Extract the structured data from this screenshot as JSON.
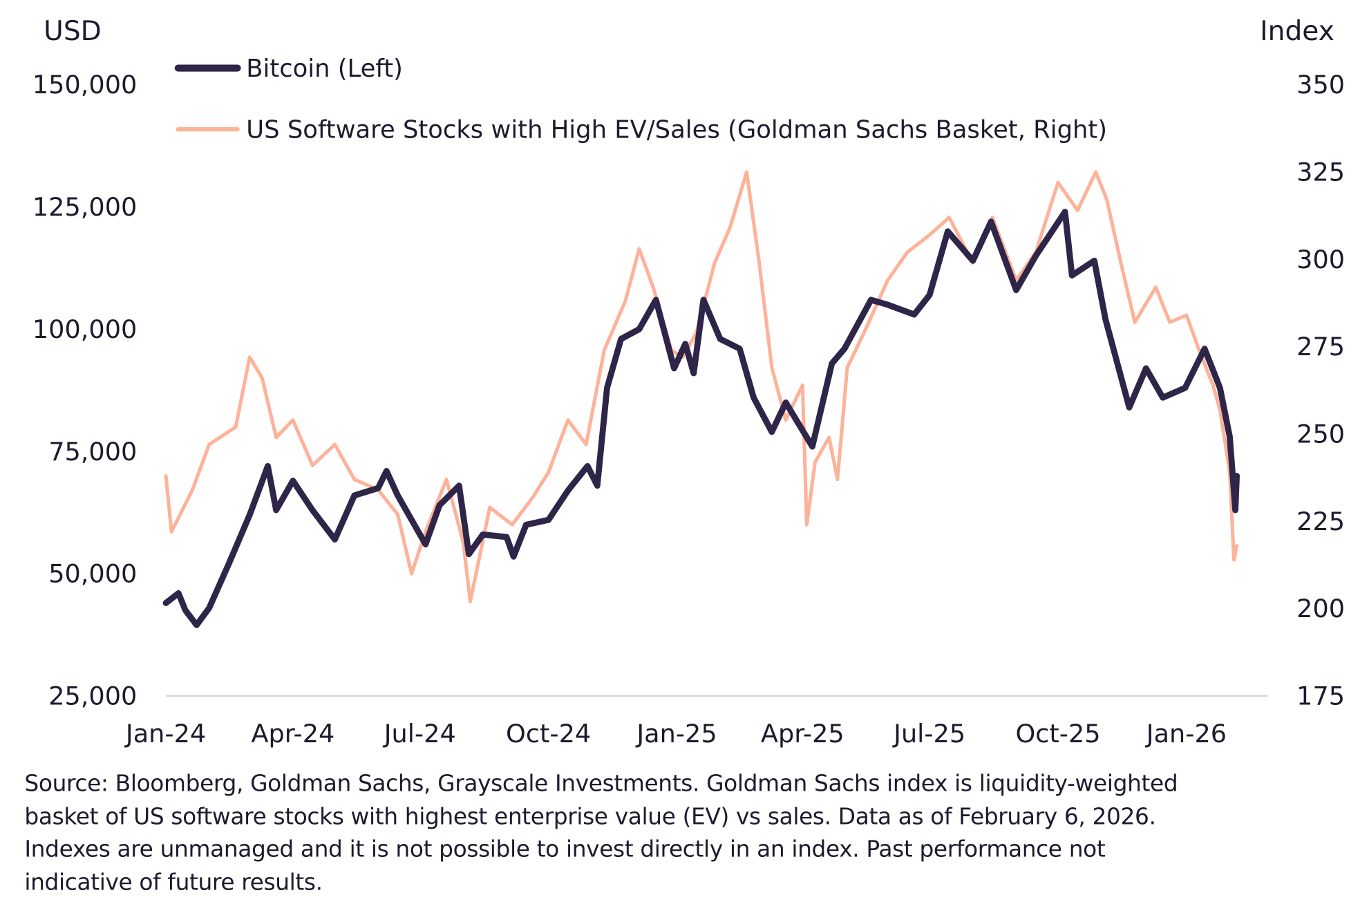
{
  "chart_data": {
    "type": "line",
    "left_axis_label": "USD",
    "right_axis_label": "Index",
    "left_ylim": [
      25000,
      150000
    ],
    "right_ylim": [
      175,
      350
    ],
    "left_ticks": [
      "25,000",
      "50,000",
      "75,000",
      "100,000",
      "125,000",
      "150,000"
    ],
    "left_tick_values": [
      25000,
      50000,
      75000,
      100000,
      125000,
      150000
    ],
    "right_ticks": [
      "175",
      "200",
      "225",
      "250",
      "275",
      "300",
      "325",
      "350"
    ],
    "right_tick_values": [
      175,
      200,
      225,
      250,
      275,
      300,
      325,
      350
    ],
    "x_ticks": [
      {
        "label": "Jan-24",
        "date": "2024-01-01"
      },
      {
        "label": "Apr-24",
        "date": "2024-04-01"
      },
      {
        "label": "Jul-24",
        "date": "2024-07-01"
      },
      {
        "label": "Oct-24",
        "date": "2024-10-01"
      },
      {
        "label": "Jan-25",
        "date": "2025-01-01"
      },
      {
        "label": "Apr-25",
        "date": "2025-04-01"
      },
      {
        "label": "Jul-25",
        "date": "2025-07-01"
      },
      {
        "label": "Oct-25",
        "date": "2025-10-01"
      },
      {
        "label": "Jan-26",
        "date": "2026-01-01"
      }
    ],
    "grid": false,
    "legend_placement": "top-left",
    "series": [
      {
        "name": "Bitcoin (Left)",
        "axis": "left",
        "color": "#2e2549",
        "points": [
          [
            "2024-01-01",
            44000
          ],
          [
            "2024-01-10",
            46000
          ],
          [
            "2024-01-15",
            42500
          ],
          [
            "2024-01-23",
            39500
          ],
          [
            "2024-02-01",
            43000
          ],
          [
            "2024-02-15",
            52000
          ],
          [
            "2024-03-01",
            62000
          ],
          [
            "2024-03-14",
            72000
          ],
          [
            "2024-03-20",
            63000
          ],
          [
            "2024-04-01",
            69000
          ],
          [
            "2024-04-15",
            63000
          ],
          [
            "2024-05-01",
            57000
          ],
          [
            "2024-05-15",
            66000
          ],
          [
            "2024-06-01",
            67500
          ],
          [
            "2024-06-07",
            71000
          ],
          [
            "2024-06-15",
            66000
          ],
          [
            "2024-07-05",
            56000
          ],
          [
            "2024-07-15",
            64000
          ],
          [
            "2024-07-29",
            68000
          ],
          [
            "2024-08-05",
            54000
          ],
          [
            "2024-08-15",
            58000
          ],
          [
            "2024-09-01",
            57500
          ],
          [
            "2024-09-06",
            53500
          ],
          [
            "2024-09-15",
            60000
          ],
          [
            "2024-10-01",
            61000
          ],
          [
            "2024-10-15",
            67000
          ],
          [
            "2024-10-29",
            72000
          ],
          [
            "2024-11-05",
            68000
          ],
          [
            "2024-11-12",
            88000
          ],
          [
            "2024-11-22",
            98000
          ],
          [
            "2024-12-05",
            100000
          ],
          [
            "2024-12-17",
            106000
          ],
          [
            "2024-12-30",
            92000
          ],
          [
            "2025-01-07",
            97000
          ],
          [
            "2025-01-13",
            91000
          ],
          [
            "2025-01-20",
            106000
          ],
          [
            "2025-02-01",
            98000
          ],
          [
            "2025-02-15",
            96000
          ],
          [
            "2025-02-25",
            86000
          ],
          [
            "2025-03-10",
            79000
          ],
          [
            "2025-03-20",
            85000
          ],
          [
            "2025-04-08",
            76000
          ],
          [
            "2025-04-22",
            93000
          ],
          [
            "2025-05-01",
            96000
          ],
          [
            "2025-05-20",
            106000
          ],
          [
            "2025-06-01",
            105000
          ],
          [
            "2025-06-20",
            103000
          ],
          [
            "2025-07-01",
            107000
          ],
          [
            "2025-07-14",
            120000
          ],
          [
            "2025-08-01",
            114000
          ],
          [
            "2025-08-14",
            122000
          ],
          [
            "2025-09-01",
            108000
          ],
          [
            "2025-09-15",
            115000
          ],
          [
            "2025-10-06",
            124000
          ],
          [
            "2025-10-11",
            111000
          ],
          [
            "2025-10-27",
            114000
          ],
          [
            "2025-11-04",
            102000
          ],
          [
            "2025-11-21",
            84000
          ],
          [
            "2025-12-03",
            92000
          ],
          [
            "2025-12-15",
            86000
          ],
          [
            "2025-12-31",
            88000
          ],
          [
            "2026-01-14",
            96000
          ],
          [
            "2026-01-25",
            88000
          ],
          [
            "2026-02-01",
            78000
          ],
          [
            "2026-02-05",
            63000
          ],
          [
            "2026-02-06",
            70000
          ]
        ]
      },
      {
        "name": "US Software Stocks with High EV/Sales (Goldman Sachs Basket, Right)",
        "axis": "right",
        "color": "#fdb299",
        "points": [
          [
            "2024-01-01",
            238
          ],
          [
            "2024-01-05",
            222
          ],
          [
            "2024-01-20",
            234
          ],
          [
            "2024-02-01",
            247
          ],
          [
            "2024-02-20",
            252
          ],
          [
            "2024-03-01",
            272
          ],
          [
            "2024-03-10",
            266
          ],
          [
            "2024-03-20",
            249
          ],
          [
            "2024-04-01",
            254
          ],
          [
            "2024-04-15",
            241
          ],
          [
            "2024-05-01",
            247
          ],
          [
            "2024-05-15",
            237
          ],
          [
            "2024-06-01",
            234
          ],
          [
            "2024-06-15",
            227
          ],
          [
            "2024-06-25",
            210
          ],
          [
            "2024-07-05",
            222
          ],
          [
            "2024-07-20",
            237
          ],
          [
            "2024-08-01",
            219
          ],
          [
            "2024-08-06",
            202
          ],
          [
            "2024-08-20",
            229
          ],
          [
            "2024-09-05",
            224
          ],
          [
            "2024-09-20",
            232
          ],
          [
            "2024-10-01",
            239
          ],
          [
            "2024-10-15",
            254
          ],
          [
            "2024-10-28",
            247
          ],
          [
            "2024-11-10",
            274
          ],
          [
            "2024-11-25",
            288
          ],
          [
            "2024-12-05",
            303
          ],
          [
            "2024-12-15",
            292
          ],
          [
            "2024-12-28",
            274
          ],
          [
            "2025-01-05",
            272
          ],
          [
            "2025-01-15",
            279
          ],
          [
            "2025-01-28",
            299
          ],
          [
            "2025-02-08",
            309
          ],
          [
            "2025-02-20",
            325
          ],
          [
            "2025-03-01",
            299
          ],
          [
            "2025-03-10",
            269
          ],
          [
            "2025-03-20",
            254
          ],
          [
            "2025-04-01",
            264
          ],
          [
            "2025-04-04",
            224
          ],
          [
            "2025-04-10",
            242
          ],
          [
            "2025-04-20",
            249
          ],
          [
            "2025-04-26",
            237
          ],
          [
            "2025-05-03",
            269
          ],
          [
            "2025-05-15",
            279
          ],
          [
            "2025-06-01",
            294
          ],
          [
            "2025-06-15",
            302
          ],
          [
            "2025-07-01",
            307
          ],
          [
            "2025-07-15",
            312
          ],
          [
            "2025-08-01",
            299
          ],
          [
            "2025-08-15",
            312
          ],
          [
            "2025-09-01",
            294
          ],
          [
            "2025-09-15",
            302
          ],
          [
            "2025-10-01",
            322
          ],
          [
            "2025-10-15",
            314
          ],
          [
            "2025-10-28",
            325
          ],
          [
            "2025-11-05",
            317
          ],
          [
            "2025-11-15",
            299
          ],
          [
            "2025-11-25",
            282
          ],
          [
            "2025-12-10",
            292
          ],
          [
            "2025-12-20",
            282
          ],
          [
            "2026-01-01",
            284
          ],
          [
            "2026-01-10",
            274
          ],
          [
            "2026-01-20",
            264
          ],
          [
            "2026-01-25",
            257
          ],
          [
            "2026-02-01",
            239
          ],
          [
            "2026-02-04",
            214
          ],
          [
            "2026-02-06",
            218
          ]
        ]
      }
    ]
  },
  "footer": {
    "lines": [
      "Source: Bloomberg, Goldman Sachs, Grayscale Investments. Goldman Sachs index is liquidity-weighted",
      "basket of US software stocks with highest enterprise value (EV) vs sales. Data as of February 6, 2026.",
      "Indexes are unmanaged and it is not possible to invest directly in an index. Past performance not",
      "indicative of future results."
    ]
  }
}
